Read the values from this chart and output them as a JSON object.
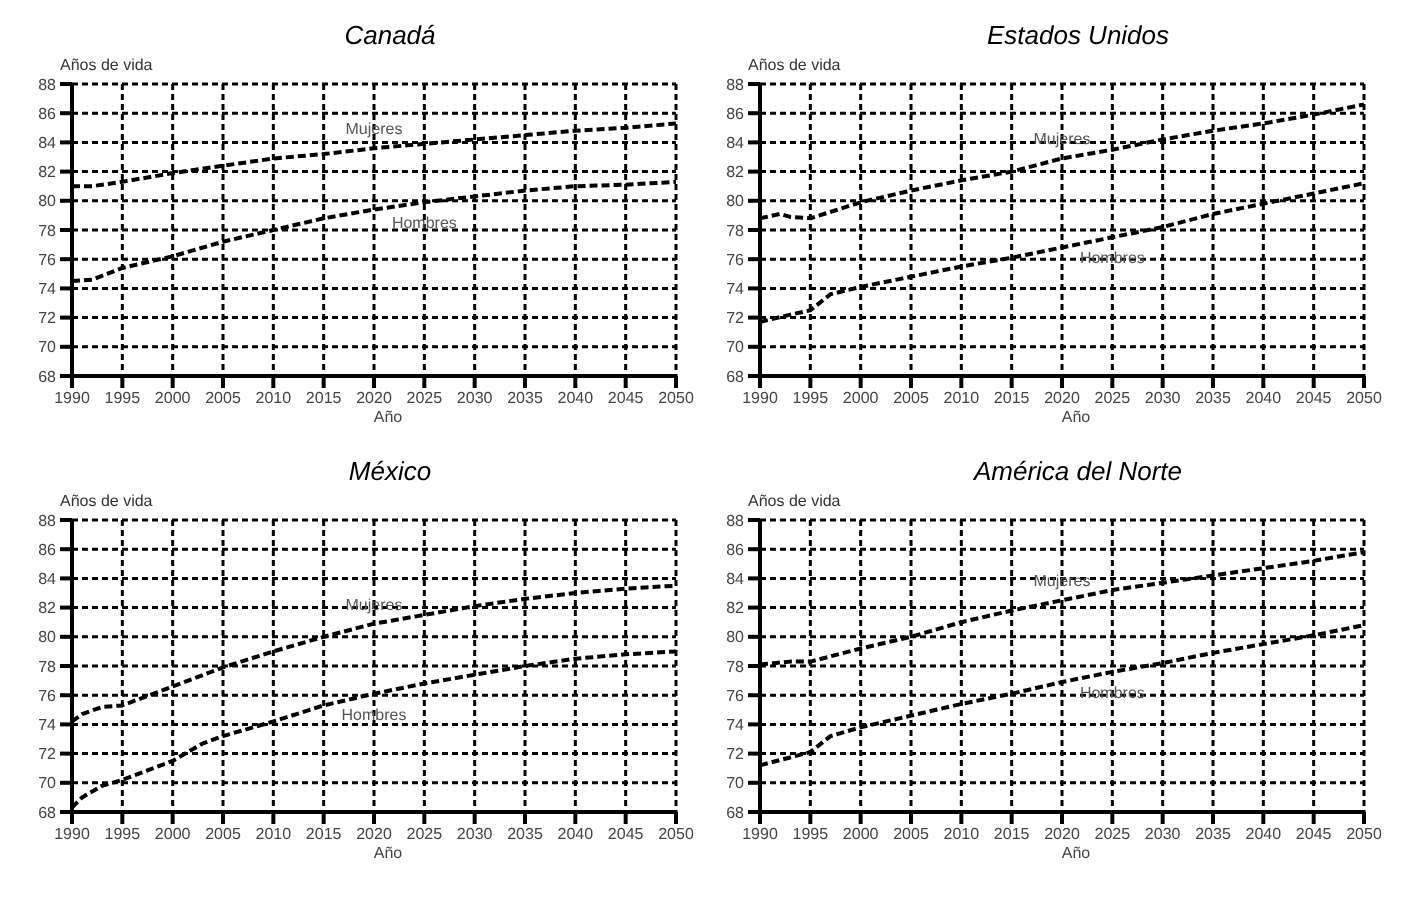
{
  "chart_data": [
    {
      "type": "line",
      "title": "Canadá",
      "xlabel": "Año",
      "ylabel": "Años de vida",
      "xlim": [
        1990,
        2050
      ],
      "xticks": [
        1990,
        1995,
        2000,
        2005,
        2010,
        2015,
        2020,
        2025,
        2030,
        2035,
        2040,
        2045,
        2050
      ],
      "ylim": [
        68,
        88
      ],
      "yticks": [
        68,
        70,
        72,
        74,
        76,
        78,
        80,
        82,
        84,
        86,
        88
      ],
      "grid": true,
      "line_style": "dashed",
      "series": [
        {
          "name": "Mujeres",
          "color": "#000000",
          "x": [
            1990,
            1992,
            1995,
            2000,
            2005,
            2010,
            2015,
            2020,
            2025,
            2030,
            2035,
            2040,
            2045,
            2050
          ],
          "values": [
            81.0,
            81.0,
            81.3,
            81.9,
            82.4,
            82.9,
            83.2,
            83.6,
            83.9,
            84.2,
            84.5,
            84.8,
            85.0,
            85.3
          ]
        },
        {
          "name": "Hombres",
          "color": "#000000",
          "x": [
            1990,
            1992,
            1995,
            2000,
            2005,
            2010,
            2015,
            2020,
            2025,
            2030,
            2035,
            2040,
            2045,
            2050
          ],
          "values": [
            74.5,
            74.6,
            75.4,
            76.2,
            77.2,
            78.0,
            78.8,
            79.4,
            79.9,
            80.3,
            80.7,
            81.0,
            81.1,
            81.3
          ]
        }
      ]
    },
    {
      "type": "line",
      "title": "Estados Unidos",
      "xlabel": "Año",
      "ylabel": "Años de vida",
      "xlim": [
        1990,
        2050
      ],
      "xticks": [
        1990,
        1995,
        2000,
        2005,
        2010,
        2015,
        2020,
        2025,
        2030,
        2035,
        2040,
        2045,
        2050
      ],
      "ylim": [
        68,
        88
      ],
      "yticks": [
        68,
        70,
        72,
        74,
        76,
        78,
        80,
        82,
        84,
        86,
        88
      ],
      "grid": true,
      "line_style": "dashed",
      "series": [
        {
          "name": "Mujeres",
          "color": "#000000",
          "x": [
            1990,
            1992,
            1993,
            1995,
            2000,
            2005,
            2010,
            2015,
            2020,
            2025,
            2030,
            2035,
            2040,
            2045,
            2050
          ],
          "values": [
            78.8,
            79.1,
            78.9,
            78.8,
            79.9,
            80.7,
            81.4,
            82.0,
            82.9,
            83.5,
            84.2,
            84.8,
            85.3,
            85.9,
            86.6
          ]
        },
        {
          "name": "Hombres",
          "color": "#000000",
          "x": [
            1990,
            1993,
            1995,
            1997,
            2000,
            2005,
            2010,
            2015,
            2020,
            2025,
            2030,
            2035,
            2040,
            2045,
            2050
          ],
          "values": [
            71.7,
            72.2,
            72.5,
            73.6,
            74.1,
            74.8,
            75.5,
            76.1,
            76.8,
            77.5,
            78.2,
            79.1,
            79.8,
            80.5,
            81.2
          ]
        }
      ]
    },
    {
      "type": "line",
      "title": "México",
      "xlabel": "Año",
      "ylabel": "Años de vida",
      "xlim": [
        1990,
        2050
      ],
      "xticks": [
        1990,
        1995,
        2000,
        2005,
        2010,
        2015,
        2020,
        2025,
        2030,
        2035,
        2040,
        2045,
        2050
      ],
      "ylim": [
        68,
        88
      ],
      "yticks": [
        68,
        70,
        72,
        74,
        76,
        78,
        80,
        82,
        84,
        86,
        88
      ],
      "grid": true,
      "line_style": "dashed",
      "series": [
        {
          "name": "Mujeres",
          "color": "#000000",
          "x": [
            1990,
            1991,
            1993,
            1995,
            2000,
            2005,
            2010,
            2015,
            2020,
            2025,
            2030,
            2035,
            2040,
            2045,
            2050
          ],
          "values": [
            74.2,
            74.7,
            75.2,
            75.3,
            76.6,
            77.9,
            79.0,
            80.0,
            80.9,
            81.5,
            82.1,
            82.6,
            83.0,
            83.3,
            83.5
          ]
        },
        {
          "name": "Hombres",
          "color": "#000000",
          "x": [
            1990,
            1991,
            1993,
            1995,
            2000,
            2003,
            2005,
            2010,
            2015,
            2020,
            2025,
            2030,
            2035,
            2040,
            2045,
            2050
          ],
          "values": [
            68.3,
            69.0,
            69.8,
            70.2,
            71.5,
            72.7,
            73.2,
            74.2,
            75.3,
            76.1,
            76.8,
            77.4,
            78.0,
            78.5,
            78.8,
            79.0
          ]
        }
      ]
    },
    {
      "type": "line",
      "title": "América del Norte",
      "xlabel": "Año",
      "ylabel": "Años de vida",
      "xlim": [
        1990,
        2050
      ],
      "xticks": [
        1990,
        1995,
        2000,
        2005,
        2010,
        2015,
        2020,
        2025,
        2030,
        2035,
        2040,
        2045,
        2050
      ],
      "ylim": [
        68,
        88
      ],
      "yticks": [
        68,
        70,
        72,
        74,
        76,
        78,
        80,
        82,
        84,
        86,
        88
      ],
      "grid": true,
      "line_style": "dashed",
      "series": [
        {
          "name": "Mujeres",
          "color": "#000000",
          "x": [
            1990,
            1993,
            1995,
            2000,
            2005,
            2010,
            2015,
            2020,
            2025,
            2030,
            2035,
            2040,
            2045,
            2050
          ],
          "values": [
            78.1,
            78.3,
            78.3,
            79.2,
            80.0,
            81.0,
            81.8,
            82.5,
            83.2,
            83.7,
            84.2,
            84.7,
            85.2,
            85.8
          ]
        },
        {
          "name": "Hombres",
          "color": "#000000",
          "x": [
            1990,
            1995,
            1997,
            2000,
            2005,
            2010,
            2015,
            2020,
            2025,
            2030,
            2035,
            2040,
            2045,
            2050
          ],
          "values": [
            71.2,
            72.1,
            73.2,
            73.8,
            74.6,
            75.4,
            76.1,
            76.9,
            77.6,
            78.2,
            78.9,
            79.5,
            80.1,
            80.8
          ]
        }
      ]
    }
  ]
}
